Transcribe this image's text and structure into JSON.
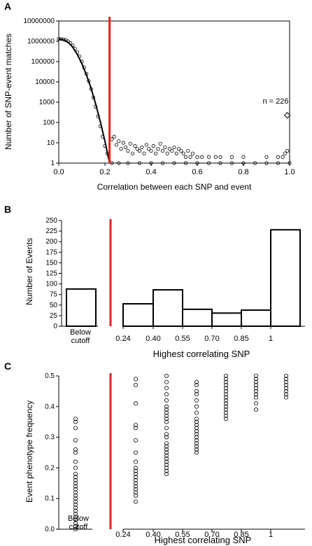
{
  "chart_data": [
    {
      "panel": "A",
      "type": "scatter",
      "ylabel": "Number of SNP-event matches",
      "xlabel": "Correlation between each SNP and event",
      "y_scale": "log10",
      "xlim": [
        0,
        1
      ],
      "ylim": [
        1,
        10000000
      ],
      "x_ticks": [
        "0.0",
        "0.2",
        "0.4",
        "0.6",
        "0.8",
        "1.0"
      ],
      "y_ticks": [
        "1",
        "10",
        "100",
        "1000",
        "10000",
        "100000",
        "1000000",
        "10000000"
      ],
      "cutoff_x": 0.22,
      "annotation": "n = 226",
      "annotated_point": {
        "x": 0.99,
        "y": 226
      },
      "null_curve": {
        "x": [
          0.0,
          0.02,
          0.04,
          0.06,
          0.08,
          0.1,
          0.12,
          0.14,
          0.16,
          0.18,
          0.2,
          0.22
        ],
        "y": [
          1300000,
          1200000,
          900000,
          520000,
          230000,
          80000,
          22000,
          4800,
          800,
          110,
          12,
          1
        ]
      },
      "points": [
        {
          "x": 0.0,
          "y": 1300000
        },
        {
          "x": 0.01,
          "y": 1290000
        },
        {
          "x": 0.02,
          "y": 1250000
        },
        {
          "x": 0.03,
          "y": 1150000
        },
        {
          "x": 0.04,
          "y": 1000000
        },
        {
          "x": 0.05,
          "y": 820000
        },
        {
          "x": 0.06,
          "y": 620000
        },
        {
          "x": 0.07,
          "y": 440000
        },
        {
          "x": 0.08,
          "y": 290000
        },
        {
          "x": 0.09,
          "y": 180000
        },
        {
          "x": 0.1,
          "y": 100000
        },
        {
          "x": 0.11,
          "y": 52000
        },
        {
          "x": 0.12,
          "y": 25000
        },
        {
          "x": 0.13,
          "y": 11000
        },
        {
          "x": 0.14,
          "y": 4500
        },
        {
          "x": 0.15,
          "y": 1700
        },
        {
          "x": 0.16,
          "y": 600
        },
        {
          "x": 0.17,
          "y": 200
        },
        {
          "x": 0.18,
          "y": 65
        },
        {
          "x": 0.19,
          "y": 20
        },
        {
          "x": 0.2,
          "y": 7
        },
        {
          "x": 0.21,
          "y": 3
        },
        {
          "x": 0.23,
          "y": 15
        },
        {
          "x": 0.24,
          "y": 20
        },
        {
          "x": 0.25,
          "y": 8
        },
        {
          "x": 0.26,
          "y": 12
        },
        {
          "x": 0.27,
          "y": 5
        },
        {
          "x": 0.28,
          "y": 10
        },
        {
          "x": 0.29,
          "y": 6
        },
        {
          "x": 0.3,
          "y": 4
        },
        {
          "x": 0.31,
          "y": 9
        },
        {
          "x": 0.32,
          "y": 3
        },
        {
          "x": 0.33,
          "y": 7
        },
        {
          "x": 0.34,
          "y": 5
        },
        {
          "x": 0.35,
          "y": 4
        },
        {
          "x": 0.36,
          "y": 6
        },
        {
          "x": 0.37,
          "y": 3
        },
        {
          "x": 0.38,
          "y": 8
        },
        {
          "x": 0.39,
          "y": 5
        },
        {
          "x": 0.4,
          "y": 4
        },
        {
          "x": 0.41,
          "y": 7
        },
        {
          "x": 0.42,
          "y": 3
        },
        {
          "x": 0.43,
          "y": 5
        },
        {
          "x": 0.44,
          "y": 9
        },
        {
          "x": 0.45,
          "y": 4
        },
        {
          "x": 0.46,
          "y": 6
        },
        {
          "x": 0.47,
          "y": 3
        },
        {
          "x": 0.48,
          "y": 5
        },
        {
          "x": 0.49,
          "y": 4
        },
        {
          "x": 0.5,
          "y": 6
        },
        {
          "x": 0.51,
          "y": 3
        },
        {
          "x": 0.52,
          "y": 5
        },
        {
          "x": 0.53,
          "y": 4
        },
        {
          "x": 0.54,
          "y": 3
        },
        {
          "x": 0.55,
          "y": 2
        },
        {
          "x": 0.56,
          "y": 4
        },
        {
          "x": 0.57,
          "y": 2
        },
        {
          "x": 0.58,
          "y": 3
        },
        {
          "x": 0.6,
          "y": 2
        },
        {
          "x": 0.62,
          "y": 2
        },
        {
          "x": 0.65,
          "y": 2
        },
        {
          "x": 0.68,
          "y": 2
        },
        {
          "x": 0.7,
          "y": 2
        },
        {
          "x": 0.75,
          "y": 2
        },
        {
          "x": 0.8,
          "y": 2
        },
        {
          "x": 0.9,
          "y": 2
        },
        {
          "x": 0.95,
          "y": 2
        },
        {
          "x": 0.97,
          "y": 2
        },
        {
          "x": 0.98,
          "y": 3
        },
        {
          "x": 0.99,
          "y": 4
        },
        {
          "x": 0.23,
          "y": 1
        },
        {
          "x": 0.26,
          "y": 1
        },
        {
          "x": 0.3,
          "y": 1
        },
        {
          "x": 0.35,
          "y": 1
        },
        {
          "x": 0.4,
          "y": 1
        },
        {
          "x": 0.45,
          "y": 1
        },
        {
          "x": 0.5,
          "y": 1
        },
        {
          "x": 0.55,
          "y": 1
        },
        {
          "x": 0.6,
          "y": 1
        },
        {
          "x": 0.65,
          "y": 1
        },
        {
          "x": 0.7,
          "y": 1
        },
        {
          "x": 0.75,
          "y": 1
        },
        {
          "x": 0.8,
          "y": 1
        },
        {
          "x": 0.85,
          "y": 1
        },
        {
          "x": 0.9,
          "y": 1
        },
        {
          "x": 0.95,
          "y": 1
        },
        {
          "x": 1.0,
          "y": 1
        }
      ]
    },
    {
      "panel": "B",
      "type": "bar",
      "ylabel": "Number of Events",
      "xlabel": "Highest correlating SNP",
      "ylim": [
        0,
        250
      ],
      "y_ticks": [
        "0",
        "25",
        "50",
        "75",
        "100",
        "125",
        "150",
        "175",
        "200",
        "225",
        "250"
      ],
      "below_cutoff": {
        "label_line1": "Below",
        "label_line2": "cutoff",
        "value": 88
      },
      "x_ticks": [
        "0.24",
        "0.40",
        "0.55",
        "0.70",
        "0.85",
        "1"
      ],
      "bins": [
        {
          "lo": 0.24,
          "hi": 0.4,
          "value": 53
        },
        {
          "lo": 0.4,
          "hi": 0.55,
          "value": 86
        },
        {
          "lo": 0.55,
          "hi": 0.7,
          "value": 40
        },
        {
          "lo": 0.7,
          "hi": 0.85,
          "value": 31
        },
        {
          "lo": 0.85,
          "hi": 1.0,
          "value": 38
        },
        {
          "lo": 1.0,
          "hi": 1.15,
          "value": 228
        }
      ]
    },
    {
      "panel": "C",
      "type": "scatter",
      "ylabel": "Event phenotype frequency",
      "xlabel": "Highest correlating SNP",
      "ylim": [
        0,
        0.5
      ],
      "y_ticks": [
        "0.0",
        "0.1",
        "0.2",
        "0.3",
        "0.4",
        "0.5"
      ],
      "below_cutoff": {
        "label_line1": "Below",
        "label_line2": "cutoff"
      },
      "x_ticks": [
        "0.24",
        "0.40",
        "0.55",
        "0.70",
        "0.85",
        "1"
      ],
      "columns": [
        {
          "group": "Below cutoff",
          "y": [
            0.0,
            0.01,
            0.02,
            0.03,
            0.04,
            0.05,
            0.06,
            0.07,
            0.08,
            0.09,
            0.1,
            0.11,
            0.12,
            0.13,
            0.14,
            0.15,
            0.16,
            0.17,
            0.18,
            0.2,
            0.22,
            0.25,
            0.26,
            0.29,
            0.33,
            0.35,
            0.36
          ]
        },
        {
          "group": "0.24-0.40",
          "y": [
            0.09,
            0.11,
            0.12,
            0.13,
            0.14,
            0.15,
            0.16,
            0.17,
            0.18,
            0.19,
            0.2,
            0.22,
            0.25,
            0.29,
            0.33,
            0.34,
            0.41,
            0.47,
            0.49
          ]
        },
        {
          "group": "0.40-0.55",
          "y": [
            0.18,
            0.19,
            0.2,
            0.21,
            0.22,
            0.23,
            0.24,
            0.25,
            0.26,
            0.27,
            0.28,
            0.3,
            0.31,
            0.33,
            0.35,
            0.36,
            0.37,
            0.38,
            0.39,
            0.4,
            0.42,
            0.44,
            0.46,
            0.48,
            0.5
          ]
        },
        {
          "group": "0.55-0.70",
          "y": [
            0.25,
            0.26,
            0.27,
            0.28,
            0.29,
            0.3,
            0.31,
            0.32,
            0.33,
            0.34,
            0.35,
            0.36,
            0.38,
            0.4,
            0.42,
            0.44,
            0.45,
            0.47,
            0.48
          ]
        },
        {
          "group": "0.70-0.85",
          "y": [
            0.36,
            0.37,
            0.38,
            0.39,
            0.4,
            0.41,
            0.42,
            0.43,
            0.44,
            0.45,
            0.46,
            0.47,
            0.48,
            0.49,
            0.5
          ]
        },
        {
          "group": "0.85-1",
          "y": [
            0.39,
            0.41,
            0.43,
            0.44,
            0.45,
            0.46,
            0.47,
            0.48,
            0.49,
            0.5
          ]
        },
        {
          "group": "1",
          "y": [
            0.43,
            0.44,
            0.45,
            0.46,
            0.47,
            0.48,
            0.49,
            0.5
          ]
        }
      ]
    }
  ]
}
